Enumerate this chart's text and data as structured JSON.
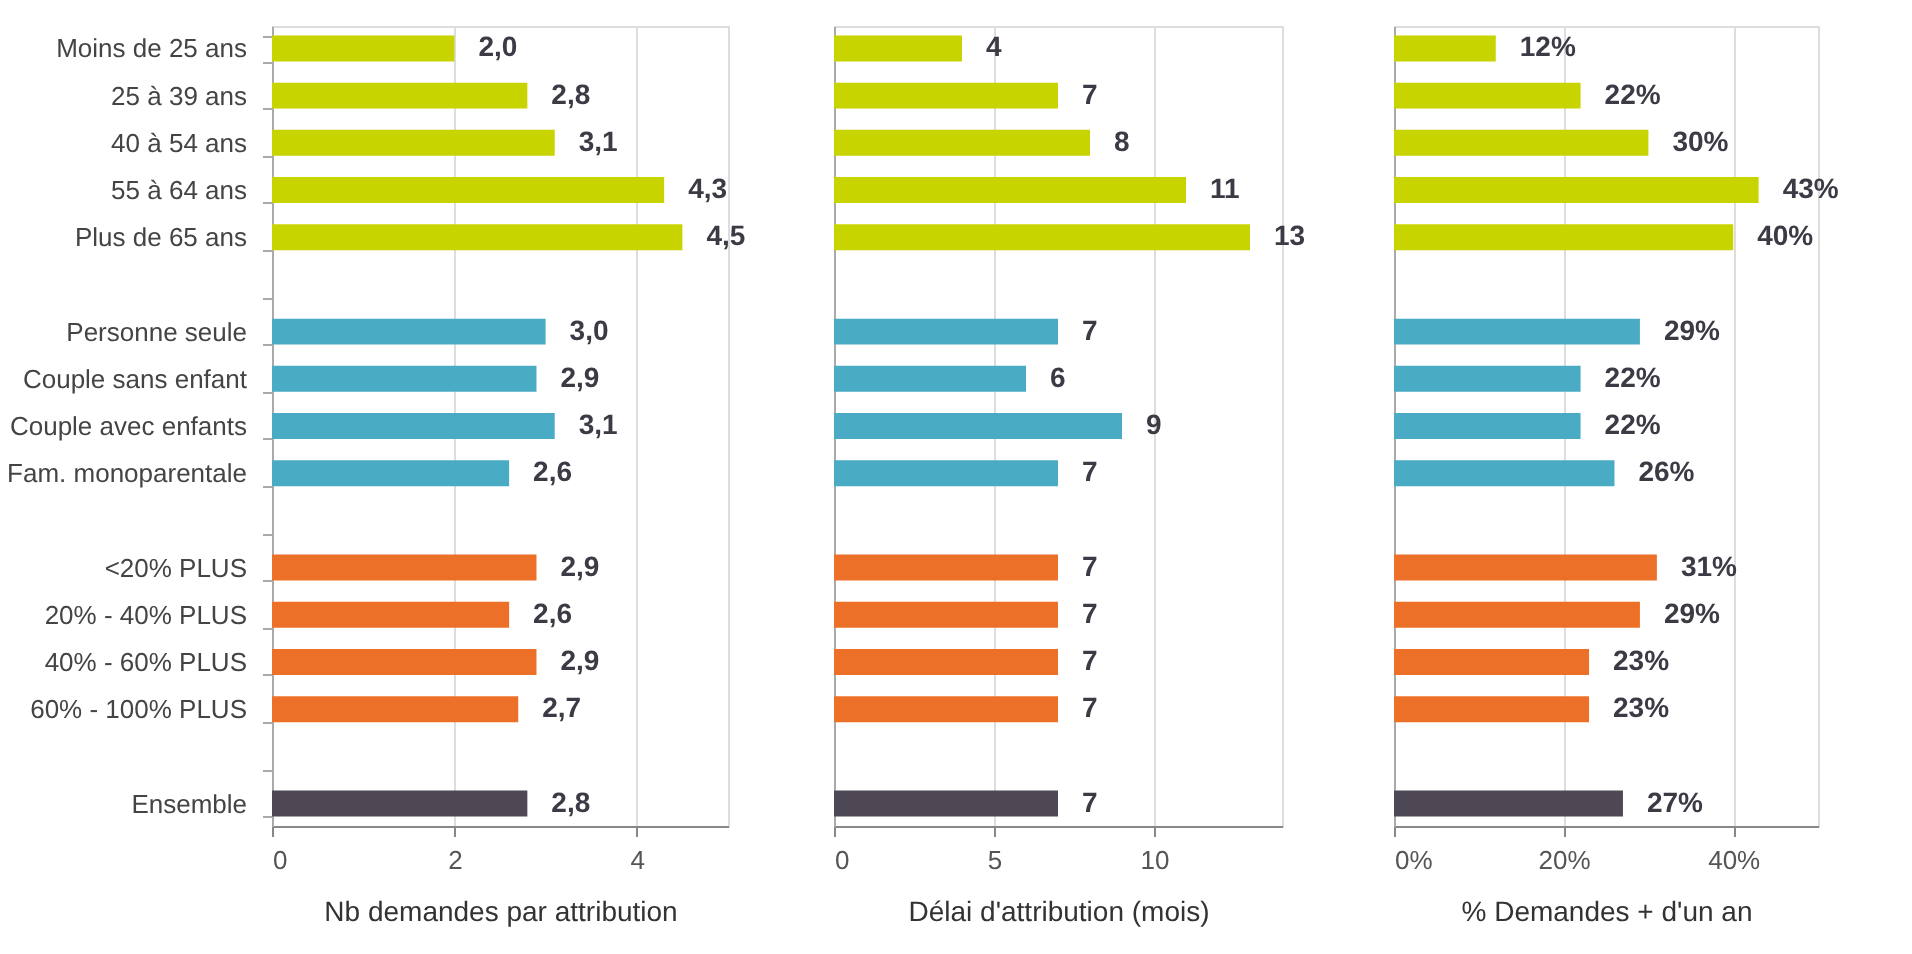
{
  "chart_data": [
    {
      "type": "bar",
      "orientation": "horizontal",
      "xlabel": "Nb demandes par attribution",
      "categories": [
        "Moins de 25 ans",
        "25 à 39 ans",
        "40 à 54 ans",
        "55 à 64 ans",
        "Plus de 65 ans",
        null,
        "Personne seule",
        "Couple sans enfant",
        "Couple avec enfants",
        "Fam. monoparentale",
        null,
        "<20% PLUS",
        "20% - 40% PLUS",
        "40% - 60% PLUS",
        "60% - 100% PLUS",
        null,
        "Ensemble"
      ],
      "values": [
        2.0,
        2.8,
        3.1,
        4.3,
        4.5,
        null,
        3.0,
        2.9,
        3.1,
        2.6,
        null,
        2.9,
        2.6,
        2.9,
        2.7,
        null,
        2.8
      ],
      "value_labels": [
        "2,0",
        "2,8",
        "3,1",
        "4,3",
        "4,5",
        null,
        "3,0",
        "2,9",
        "3,1",
        "2,6",
        null,
        "2,9",
        "2,6",
        "2,9",
        "2,7",
        null,
        "2,8"
      ],
      "colors": [
        "#c8d400",
        "#c8d400",
        "#c8d400",
        "#c8d400",
        "#c8d400",
        null,
        "#4aabc4",
        "#4aabc4",
        "#4aabc4",
        "#4aabc4",
        null,
        "#ec7028",
        "#ec7028",
        "#ec7028",
        "#ec7028",
        null,
        "#4d4853"
      ],
      "xlim": [
        0,
        5
      ],
      "xticks": [
        0,
        2,
        4
      ],
      "grid": "x"
    },
    {
      "type": "bar",
      "orientation": "horizontal",
      "xlabel": "Délai d'attribution (mois)",
      "categories": [
        null,
        null,
        null,
        null,
        null,
        null,
        null,
        null,
        null,
        null,
        null,
        null,
        null,
        null,
        null,
        null,
        null
      ],
      "values": [
        4,
        7,
        8,
        11,
        13,
        null,
        7,
        6,
        9,
        7,
        null,
        7,
        7,
        7,
        7,
        null,
        7
      ],
      "value_labels": [
        "4",
        "7",
        "8",
        "11",
        "13",
        null,
        "7",
        "6",
        "9",
        "7",
        null,
        "7",
        "7",
        "7",
        "7",
        null,
        "7"
      ],
      "colors": [
        "#c8d400",
        "#c8d400",
        "#c8d400",
        "#c8d400",
        "#c8d400",
        null,
        "#4aabc4",
        "#4aabc4",
        "#4aabc4",
        "#4aabc4",
        null,
        "#ec7028",
        "#ec7028",
        "#ec7028",
        "#ec7028",
        null,
        "#4d4853"
      ],
      "xlim": [
        0,
        14
      ],
      "xticks": [
        0,
        5,
        10
      ],
      "grid": "x",
      "tick_labels": "x"
    },
    {
      "type": "bar",
      "orientation": "horizontal",
      "xlabel": "% Demandes + d'un an",
      "categories": [
        null,
        null,
        null,
        null,
        null,
        null,
        null,
        null,
        null,
        null,
        null,
        null,
        null,
        null,
        null,
        null,
        null
      ],
      "values": [
        12,
        22,
        30,
        43,
        40,
        null,
        29,
        22,
        22,
        26,
        null,
        31,
        29,
        23,
        23,
        null,
        27
      ],
      "value_labels": [
        "12%",
        "22%",
        "30%",
        "43%",
        "40%",
        null,
        "29%",
        "22%",
        "22%",
        "26%",
        null,
        "31%",
        "29%",
        "23%",
        "23%",
        null,
        "27%"
      ],
      "colors": [
        "#c8d400",
        "#c8d400",
        "#c8d400",
        "#c8d400",
        "#c8d400",
        null,
        "#4aabc4",
        "#4aabc4",
        "#4aabc4",
        "#4aabc4",
        null,
        "#ec7028",
        "#ec7028",
        "#ec7028",
        "#ec7028",
        null,
        "#4d4853"
      ],
      "xlim": [
        0,
        50
      ],
      "xticks": [
        {
          "value": 0,
          "label": "0%"
        },
        {
          "value": 20,
          "label": "20%"
        },
        {
          "value": 40,
          "label": "40%"
        }
      ],
      "grid": "x",
      "tick_labels": "x"
    }
  ]
}
